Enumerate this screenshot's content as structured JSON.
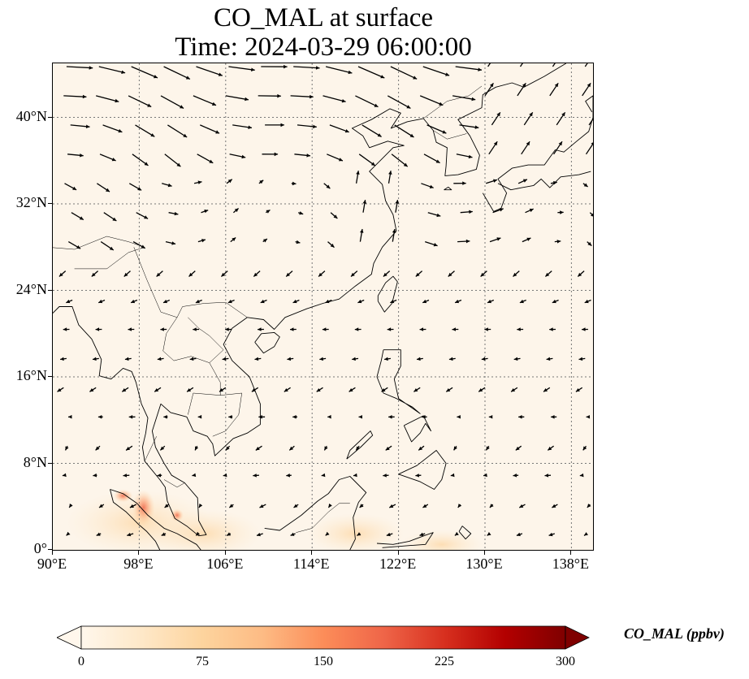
{
  "title": {
    "line1": "CO_MAL at surface",
    "line2": "Time: 2024-03-29 06:00:00"
  },
  "map": {
    "extent": {
      "lon_min": 90,
      "lon_max": 140,
      "lat_min": 0,
      "lat_max": 45
    },
    "gridlines": "dotted",
    "background_color": "#fdf5ea",
    "lat_ticks": [
      "0°",
      "8°N",
      "16°N",
      "24°N",
      "32°N",
      "40°N"
    ],
    "lon_ticks": [
      "90°E",
      "98°E",
      "106°E",
      "114°E",
      "122°E",
      "130°E",
      "138°E"
    ],
    "layers": [
      "CO_MAL concentration field",
      "wind vectors",
      "coastlines and borders"
    ]
  },
  "colorbar": {
    "label": "CO_MAL (ppbv)",
    "ticks": [
      "0",
      "75",
      "150",
      "225",
      "300"
    ],
    "colormap": "OrRd",
    "extend": "both",
    "colors": [
      "#fff7ec",
      "#fee8c8",
      "#fdd49e",
      "#fdbb84",
      "#fc8d59",
      "#ef6548",
      "#d7301f",
      "#b30000",
      "#7f0000"
    ]
  }
}
